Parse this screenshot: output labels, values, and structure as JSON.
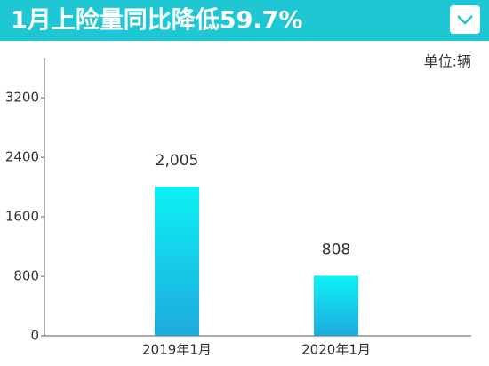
{
  "chart_data": {
    "type": "bar",
    "title": "1月上险量同比降低59.7%",
    "unit_label": "单位:辆",
    "categories": [
      "2019年1月",
      "2020年1月"
    ],
    "values": [
      2005,
      808
    ],
    "value_labels": [
      "2,005",
      "808"
    ],
    "gradient": [
      "#0cf2f4",
      "#1fa9de"
    ],
    "header_color": "#1fc6d4",
    "ylim": [
      0,
      3740
    ],
    "yticks": [
      0,
      800,
      1600,
      2400,
      3200
    ],
    "grid": false
  }
}
